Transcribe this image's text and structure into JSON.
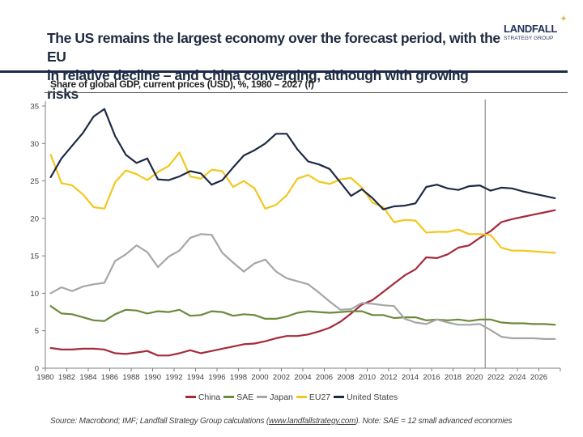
{
  "header": {
    "title_line1": "The US remains the largest economy over the forecast period, with the EU",
    "title_line2": "in relative decline – and China converging, although with growing risks",
    "logo_name": "LANDFALL",
    "logo_sub": "STRATEGY GROUP",
    "logo_icon": "four-point-star-icon"
  },
  "footer": {
    "source_prefix": "Source: Macrobond; IMF; Landfall Strategy Group calculations (",
    "source_link": "www.landfallstrategy.com",
    "source_suffix": "). Note: SAE = 12 small advanced economies"
  },
  "chart_data": {
    "type": "line",
    "title": "Share of global GDP, current prices (USD), %, 1980 – 2027 (f)",
    "xlabel": "",
    "ylabel": "",
    "ylim": [
      0,
      35
    ],
    "yticks": [
      0,
      5,
      10,
      15,
      20,
      25,
      30,
      35
    ],
    "xlim": [
      1980,
      2028
    ],
    "xtick_labels": [
      "1980",
      "1982",
      "1984",
      "1986",
      "1988",
      "1990",
      "1992",
      "1994",
      "1996",
      "1998",
      "2000",
      "2002",
      "2004",
      "2006",
      "2008",
      "2010",
      "2012",
      "2014",
      "2016",
      "2018",
      "2020",
      "2022",
      "2024",
      "2026"
    ],
    "grid": false,
    "legend_position": "bottom",
    "forecast_marker_year": 2021,
    "x": [
      1980,
      1981,
      1982,
      1983,
      1984,
      1985,
      1986,
      1987,
      1988,
      1989,
      1990,
      1991,
      1992,
      1993,
      1994,
      1995,
      1996,
      1997,
      1998,
      1999,
      2000,
      2001,
      2002,
      2003,
      2004,
      2005,
      2006,
      2007,
      2008,
      2009,
      2010,
      2011,
      2012,
      2013,
      2014,
      2015,
      2016,
      2017,
      2018,
      2019,
      2020,
      2021,
      2022,
      2023,
      2024,
      2025,
      2026,
      2027
    ],
    "series": [
      {
        "name": "China",
        "color": "#a52a3c",
        "values": [
          2.7,
          2.5,
          2.5,
          2.6,
          2.6,
          2.5,
          2.0,
          1.9,
          2.1,
          2.3,
          1.7,
          1.7,
          2.0,
          2.4,
          2.0,
          2.3,
          2.6,
          2.9,
          3.2,
          3.3,
          3.6,
          4.0,
          4.3,
          4.3,
          4.5,
          4.9,
          5.4,
          6.2,
          7.3,
          8.5,
          9.1,
          10.2,
          11.3,
          12.4,
          13.2,
          14.8,
          14.7,
          15.2,
          16.1,
          16.4,
          17.4,
          18.3,
          19.5,
          19.9,
          20.2,
          20.5,
          20.8,
          21.1
        ]
      },
      {
        "name": "SAE",
        "color": "#6b8a3a",
        "values": [
          8.3,
          7.3,
          7.2,
          6.8,
          6.4,
          6.3,
          7.2,
          7.8,
          7.7,
          7.3,
          7.6,
          7.5,
          7.8,
          7.0,
          7.1,
          7.6,
          7.5,
          7.0,
          7.2,
          7.1,
          6.6,
          6.6,
          6.9,
          7.4,
          7.6,
          7.5,
          7.4,
          7.5,
          7.6,
          7.6,
          7.1,
          7.1,
          6.7,
          6.8,
          6.8,
          6.4,
          6.5,
          6.4,
          6.5,
          6.3,
          6.5,
          6.5,
          6.1,
          6.0,
          6.0,
          5.9,
          5.9,
          5.8
        ]
      },
      {
        "name": "Japan",
        "color": "#a6a6a6",
        "values": [
          10.0,
          10.8,
          10.3,
          10.9,
          11.2,
          11.4,
          14.3,
          15.2,
          16.4,
          15.5,
          13.5,
          14.9,
          15.7,
          17.4,
          17.9,
          17.8,
          15.4,
          14.1,
          12.9,
          14.0,
          14.5,
          12.9,
          12.0,
          11.6,
          11.2,
          10.1,
          8.9,
          7.8,
          7.9,
          8.7,
          8.6,
          8.4,
          8.3,
          6.6,
          6.1,
          5.9,
          6.5,
          6.1,
          5.8,
          5.8,
          5.9,
          5.1,
          4.2,
          4.0,
          4.0,
          4.0,
          3.9,
          3.9
        ]
      },
      {
        "name": "EU27",
        "color": "#f2c81e",
        "values": [
          28.5,
          24.7,
          24.4,
          23.2,
          21.5,
          21.3,
          24.8,
          26.4,
          25.9,
          25.1,
          26.2,
          27.0,
          28.8,
          25.6,
          25.3,
          26.5,
          26.3,
          24.2,
          25.0,
          24.0,
          21.3,
          21.8,
          23.1,
          25.3,
          25.8,
          24.9,
          24.6,
          25.2,
          25.4,
          24.1,
          22.1,
          21.5,
          19.5,
          19.8,
          19.7,
          18.1,
          18.2,
          18.2,
          18.5,
          17.9,
          17.9,
          17.8,
          16.1,
          15.7,
          15.7,
          15.6,
          15.5,
          15.4
        ]
      },
      {
        "name": "United States",
        "color": "#1e2a45",
        "values": [
          25.5,
          28.0,
          29.7,
          31.4,
          33.6,
          34.6,
          31.0,
          28.5,
          27.4,
          28.0,
          25.2,
          25.1,
          25.6,
          26.3,
          26.0,
          24.5,
          25.1,
          26.8,
          28.4,
          29.1,
          30.0,
          31.3,
          31.3,
          29.2,
          27.6,
          27.2,
          26.6,
          24.8,
          23.0,
          23.9,
          22.7,
          21.2,
          21.6,
          21.7,
          22.0,
          24.2,
          24.5,
          24.0,
          23.8,
          24.3,
          24.4,
          23.7,
          24.1,
          24.0,
          23.6,
          23.3,
          23.0,
          22.7
        ]
      }
    ]
  }
}
